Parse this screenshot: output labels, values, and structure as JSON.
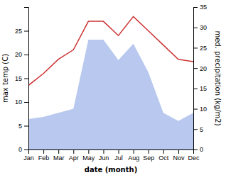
{
  "chart_data": {
    "type": "line",
    "xlabel": "date (month)",
    "ylabel": "max temp (C)",
    "y2label": "med. precipitation (kg/m2)",
    "categories": [
      "Jan",
      "Feb",
      "Mar",
      "Apr",
      "May",
      "Jun",
      "Jul",
      "Aug",
      "Sep",
      "Oct",
      "Nov",
      "Dec"
    ],
    "series": [
      {
        "type": "area",
        "axis": "y2",
        "color": "#b8c8ee",
        "values": [
          7.5,
          8.0,
          9.0,
          10.0,
          27.0,
          27.0,
          22.0,
          26.0,
          19.0,
          9.0,
          7.0,
          9.0
        ]
      },
      {
        "type": "line",
        "color": "#cc3333",
        "values": [
          13.5,
          16.0,
          19.0,
          21.0,
          27.0,
          27.0,
          24.0,
          28.0,
          25.0,
          22.0,
          19.0,
          18.5
        ]
      }
    ],
    "ylim": [
      0,
      30
    ],
    "yticks": [
      0,
      5,
      10,
      15,
      20,
      25
    ],
    "y2lim": [
      0,
      35
    ],
    "y2ticks": [
      0,
      5,
      10,
      15,
      20,
      25,
      30,
      35
    ],
    "grid": false
  }
}
